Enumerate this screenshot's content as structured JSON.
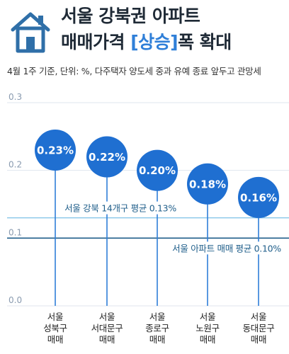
{
  "header": {
    "title_line1": "서울 강북권 아파트",
    "title_line2_prefix": "매매가격 ",
    "title_line2_accent": "[상승]",
    "title_line2_suffix": "폭 확대",
    "icon": "house-icon"
  },
  "subtitle": "4월 1주 기준, 단위: %, 다주택자 양도세 중과 유예 종료 앞두고 관망세",
  "colors": {
    "bubble": "#1f6fd1",
    "stem": "#2f7fd8",
    "gangbuk_avg_line": "#8ec9ea",
    "seoul_avg_line": "#1f5e8a",
    "axis_text": "#8a9bb0",
    "grid": "#dfe6ee",
    "title": "#1f2a36",
    "accent": "#2f7fd8"
  },
  "chart_data": {
    "type": "scatter",
    "ylim": [
      0,
      0.3
    ],
    "yticks": [
      "0.0",
      "0.1",
      "0.2",
      "0.3"
    ],
    "categories": [
      [
        "서울",
        "성북구",
        "매매"
      ],
      [
        "서울",
        "서대문구",
        "매매"
      ],
      [
        "서울",
        "종로구",
        "매매"
      ],
      [
        "서울",
        "노원구",
        "매매"
      ],
      [
        "서울",
        "동대문구",
        "매매"
      ]
    ],
    "values": [
      0.23,
      0.22,
      0.2,
      0.18,
      0.16
    ],
    "value_labels": [
      "0.23%",
      "0.22%",
      "0.20%",
      "0.18%",
      "0.16%"
    ],
    "reference_lines": [
      {
        "label": "서울 강북 14개구 평균 0.13%",
        "value": 0.13
      },
      {
        "label": "서울 아파트 매매 평균 0.10%",
        "value": 0.1
      }
    ],
    "grid": true
  }
}
